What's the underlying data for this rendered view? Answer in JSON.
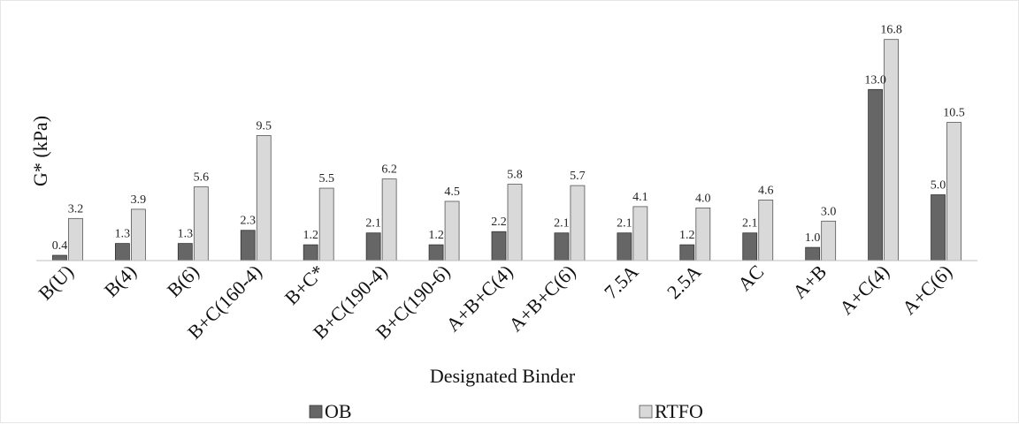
{
  "chart_data": {
    "type": "bar",
    "title": "",
    "xlabel": "Designated Binder",
    "ylabel": "G* (kPa)",
    "ylim": [
      0,
      18
    ],
    "grid": false,
    "legend": "bottom",
    "categories": [
      "B(U)",
      "B(4)",
      "B(6)",
      "B+C(160-4)",
      "B+C*",
      "B+C(190-4)",
      "B+C(190-6)",
      "A+B+C(4)",
      "A+B+C(6)",
      "7.5A",
      "2.5A",
      "AC",
      "A+B",
      "A+C(4)",
      "A+C(6)"
    ],
    "series": [
      {
        "name": "OB",
        "color": "#666666",
        "values": [
          0.4,
          1.3,
          1.3,
          2.3,
          1.2,
          2.1,
          1.2,
          2.2,
          2.1,
          2.1,
          1.2,
          2.1,
          1.0,
          13.0,
          5.0
        ],
        "labels": [
          "0.4",
          "1.3",
          "1.3",
          "2.3",
          "1.2",
          "2.1",
          "1.2",
          "2.2",
          "2.1",
          "2.1",
          "1.2",
          "2.1",
          "1.0",
          "13.0",
          "5.0"
        ]
      },
      {
        "name": "RTFO",
        "color": "#d9d9d9",
        "values": [
          3.2,
          3.9,
          5.6,
          9.5,
          5.5,
          6.2,
          4.5,
          5.8,
          5.7,
          4.1,
          4.0,
          4.6,
          3.0,
          16.8,
          10.5
        ],
        "labels": [
          "3.2",
          "3.9",
          "5.6",
          "9.5",
          "5.5",
          "6.2",
          "4.5",
          "5.8",
          "5.7",
          "4.1",
          "4.0",
          "4.6",
          "3.0",
          "16.8",
          "10.5"
        ]
      }
    ]
  }
}
